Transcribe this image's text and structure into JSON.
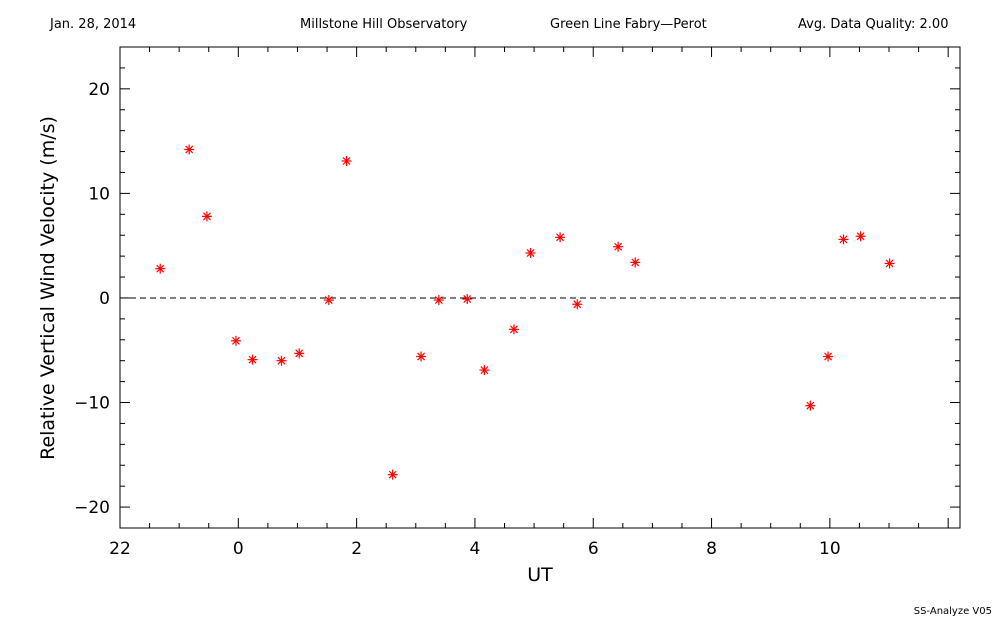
{
  "header": {
    "date": "Jan. 28, 2014",
    "observatory": "Millstone Hill Observatory",
    "instrument": "Green Line Fabry—Perot",
    "quality": "Avg. Data Quality: 2.00"
  },
  "footer": "SS-Analyze V05",
  "chart_data": {
    "type": "scatter",
    "title": "",
    "xlabel": "UT",
    "ylabel": "Relative Vertical Wind Velocity (m/s)",
    "xlim": [
      -2.0,
      12.2
    ],
    "ylim": [
      -22,
      24
    ],
    "x_major_ticks": [
      {
        "value": -2,
        "label": "22"
      },
      {
        "value": 0,
        "label": "0"
      },
      {
        "value": 2,
        "label": "2"
      },
      {
        "value": 4,
        "label": "4"
      },
      {
        "value": 6,
        "label": "6"
      },
      {
        "value": 8,
        "label": "8"
      },
      {
        "value": 10,
        "label": "10"
      }
    ],
    "y_major_ticks": [
      {
        "value": -20,
        "label": "−20"
      },
      {
        "value": -10,
        "label": "−10"
      },
      {
        "value": 0,
        "label": "0"
      },
      {
        "value": 10,
        "label": "10"
      },
      {
        "value": 20,
        "label": "20"
      }
    ],
    "reference_line": {
      "y": 0,
      "style": "dashed"
    },
    "marker": "asterisk",
    "color": "#ff0000",
    "points": [
      {
        "x": -1.32,
        "y": 2.8
      },
      {
        "x": -0.83,
        "y": 14.2
      },
      {
        "x": -0.53,
        "y": 7.8
      },
      {
        "x": -0.04,
        "y": -4.1
      },
      {
        "x": 0.24,
        "y": -5.9
      },
      {
        "x": 0.73,
        "y": -6.0
      },
      {
        "x": 1.03,
        "y": -5.3
      },
      {
        "x": 1.53,
        "y": -0.2
      },
      {
        "x": 1.83,
        "y": 13.1
      },
      {
        "x": 2.61,
        "y": -16.9
      },
      {
        "x": 3.09,
        "y": -5.6
      },
      {
        "x": 3.39,
        "y": -0.2
      },
      {
        "x": 3.87,
        "y": -0.1
      },
      {
        "x": 4.16,
        "y": -6.9
      },
      {
        "x": 4.66,
        "y": -3.0
      },
      {
        "x": 4.94,
        "y": 4.3
      },
      {
        "x": 5.44,
        "y": 5.8
      },
      {
        "x": 5.73,
        "y": -0.6
      },
      {
        "x": 6.42,
        "y": 4.9
      },
      {
        "x": 6.71,
        "y": 3.4
      },
      {
        "x": 9.67,
        "y": -10.3
      },
      {
        "x": 9.97,
        "y": -5.6
      },
      {
        "x": 10.23,
        "y": 5.6
      },
      {
        "x": 10.52,
        "y": 5.9
      },
      {
        "x": 11.01,
        "y": 3.3
      }
    ]
  }
}
